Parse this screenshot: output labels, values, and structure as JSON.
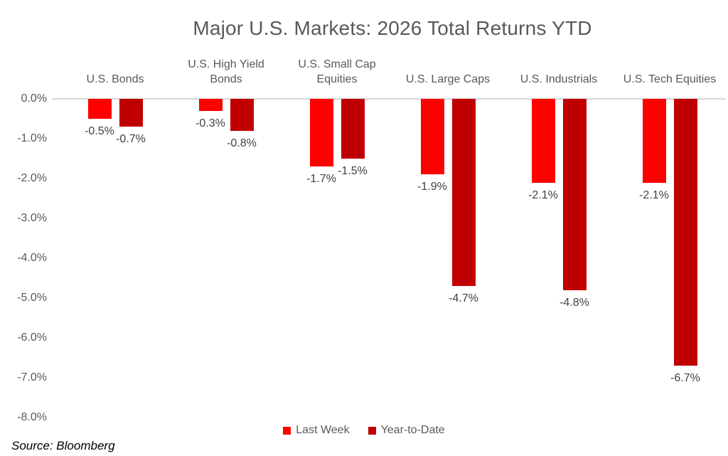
{
  "title": "Major U.S. Markets: 2026 Total Returns YTD",
  "source": "Source: Bloomberg",
  "colors": {
    "last_week": "#FF0000",
    "year_to_date": "#C00000",
    "axis_line": "#D6D6D6",
    "title_text": "#595959",
    "data_label_text": "#404040"
  },
  "legend": [
    {
      "label": "Last Week",
      "color": "#FF0000"
    },
    {
      "label": "Year-to-Date",
      "color": "#C00000"
    }
  ],
  "y_axis": {
    "ticks": [
      "0.0%",
      "-1.0%",
      "-2.0%",
      "-3.0%",
      "-4.0%",
      "-5.0%",
      "-6.0%",
      "-7.0%",
      "-8.0%"
    ]
  },
  "chart_data": {
    "type": "bar",
    "title": "Major U.S. Markets: 2026 Total Returns YTD",
    "categories": [
      "U.S. Bonds",
      "U.S. High Yield Bonds",
      "U.S. Small Cap Equities",
      "U.S. Large Caps",
      "U.S. Industrials",
      "U.S. Tech Equities"
    ],
    "series": [
      {
        "name": "Last Week",
        "color": "#FF0000",
        "values": [
          -0.5,
          -0.3,
          -1.7,
          -1.9,
          -2.1,
          -2.1
        ]
      },
      {
        "name": "Year-to-Date",
        "color": "#C00000",
        "values": [
          -0.7,
          -0.8,
          -1.5,
          -4.7,
          -4.8,
          -6.7
        ]
      }
    ],
    "data_labels": [
      [
        "-0.5%",
        "-0.3%",
        "-1.7%",
        "-1.9%",
        "-2.1%",
        "-2.1%"
      ],
      [
        "-0.7%",
        "-0.8%",
        "-1.5%",
        "-4.7%",
        "-4.8%",
        "-6.7%"
      ]
    ],
    "ylim": [
      -8,
      0
    ],
    "xlabel": "",
    "ylabel": "",
    "grid": false,
    "legend_position": "bottom",
    "source": "Source: Bloomberg"
  }
}
